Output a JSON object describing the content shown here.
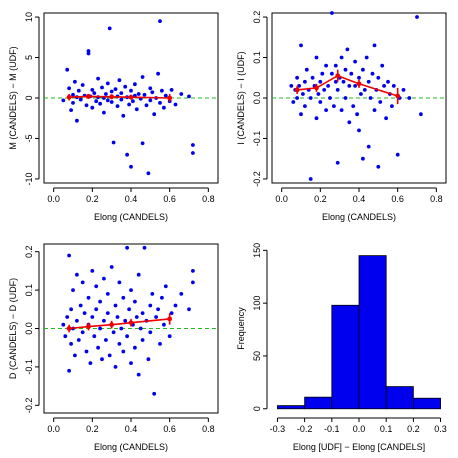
{
  "chart_data": [
    {
      "type": "scatter",
      "xlabel": "Elong (CANDELS)",
      "ylabel": "M (CANDELS) − M (UDF)",
      "xlim": [
        -0.05,
        0.85
      ],
      "ylim": [
        -10.5,
        10.5
      ],
      "xticks": [
        "0.0",
        "0.2",
        "0.4",
        "0.6",
        "0.8"
      ],
      "xtick_values": [
        0.0,
        0.2,
        0.4,
        0.6,
        0.8
      ],
      "yticks": [
        "-10",
        "-5",
        "0",
        "5",
        "10"
      ],
      "ytick_values": [
        -10,
        -5,
        0,
        5,
        10
      ],
      "reference_line": 0,
      "points": [
        [
          0.05,
          -0.3
        ],
        [
          0.07,
          3.5
        ],
        [
          0.08,
          1.2
        ],
        [
          0.09,
          -1.5
        ],
        [
          0.1,
          0.4
        ],
        [
          0.1,
          -0.6
        ],
        [
          0.11,
          2.0
        ],
        [
          0.12,
          0.1
        ],
        [
          0.12,
          -2.8
        ],
        [
          0.13,
          0.9
        ],
        [
          0.14,
          -0.2
        ],
        [
          0.15,
          1.6
        ],
        [
          0.16,
          0.3
        ],
        [
          0.17,
          -0.9
        ],
        [
          0.18,
          5.8
        ],
        [
          0.18,
          5.5
        ],
        [
          0.19,
          0.2
        ],
        [
          0.2,
          -1.2
        ],
        [
          0.2,
          1.0
        ],
        [
          0.21,
          0.6
        ],
        [
          0.22,
          -0.4
        ],
        [
          0.23,
          2.4
        ],
        [
          0.23,
          0.1
        ],
        [
          0.24,
          -0.7
        ],
        [
          0.25,
          1.3
        ],
        [
          0.26,
          0.0
        ],
        [
          0.26,
          -1.8
        ],
        [
          0.27,
          0.5
        ],
        [
          0.28,
          -0.3
        ],
        [
          0.28,
          1.8
        ],
        [
          0.29,
          8.6
        ],
        [
          0.3,
          0.8
        ],
        [
          0.3,
          -0.5
        ],
        [
          0.31,
          -5.5
        ],
        [
          0.32,
          1.1
        ],
        [
          0.33,
          0.2
        ],
        [
          0.33,
          -1.0
        ],
        [
          0.34,
          2.2
        ],
        [
          0.35,
          -0.2
        ],
        [
          0.35,
          0.6
        ],
        [
          0.36,
          -2.2
        ],
        [
          0.37,
          1.4
        ],
        [
          0.38,
          0.1
        ],
        [
          0.38,
          -7.0
        ],
        [
          0.39,
          -0.8
        ],
        [
          0.4,
          -8.5
        ],
        [
          0.4,
          0.9
        ],
        [
          0.41,
          -0.4
        ],
        [
          0.42,
          1.7
        ],
        [
          0.42,
          0.3
        ],
        [
          0.43,
          -1.4
        ],
        [
          0.44,
          0.5
        ],
        [
          0.45,
          -0.1
        ],
        [
          0.46,
          2.6
        ],
        [
          0.46,
          -5.6
        ],
        [
          0.47,
          0.4
        ],
        [
          0.48,
          -0.9
        ],
        [
          0.49,
          -9.3
        ],
        [
          0.5,
          1.2
        ],
        [
          0.5,
          -0.3
        ],
        [
          0.51,
          0.7
        ],
        [
          0.52,
          -2.0
        ],
        [
          0.53,
          0.0
        ],
        [
          0.54,
          3.0
        ],
        [
          0.55,
          9.5
        ],
        [
          0.55,
          -0.6
        ],
        [
          0.56,
          0.9
        ],
        [
          0.57,
          -1.2
        ],
        [
          0.58,
          0.3
        ],
        [
          0.6,
          -0.4
        ],
        [
          0.61,
          1.0
        ],
        [
          0.63,
          -0.8
        ],
        [
          0.66,
          0.5
        ],
        [
          0.7,
          0.2
        ],
        [
          0.72,
          -5.8
        ],
        [
          0.72,
          -6.8
        ]
      ],
      "trend": [
        [
          0.08,
          0.1
        ],
        [
          0.18,
          0.2
        ],
        [
          0.3,
          0.15
        ],
        [
          0.4,
          0.1
        ],
        [
          0.6,
          0.0
        ]
      ],
      "trend_err": [
        0.4,
        0.3,
        0.3,
        0.3,
        0.5
      ]
    },
    {
      "type": "scatter",
      "xlabel": "Elong (CANDELS)",
      "ylabel": "I (CANDELS) − I (UDF)",
      "xlim": [
        -0.05,
        0.85
      ],
      "ylim": [
        -0.21,
        0.21
      ],
      "xticks": [
        "0.0",
        "0.2",
        "0.4",
        "0.6",
        "0.8"
      ],
      "xtick_values": [
        0.0,
        0.2,
        0.4,
        0.6,
        0.8
      ],
      "yticks": [
        "-0.2",
        "-0.1",
        "0.0",
        "0.1",
        "0.2"
      ],
      "ytick_values": [
        -0.2,
        -0.1,
        0.0,
        0.1,
        0.2
      ],
      "reference_line": 0,
      "points": [
        [
          0.05,
          0.03
        ],
        [
          0.06,
          -0.01
        ],
        [
          0.07,
          0.02
        ],
        [
          0.08,
          0.05
        ],
        [
          0.08,
          0.0
        ],
        [
          0.09,
          0.03
        ],
        [
          0.1,
          -0.04
        ],
        [
          0.1,
          0.13
        ],
        [
          0.11,
          0.01
        ],
        [
          0.12,
          0.04
        ],
        [
          0.12,
          -0.02
        ],
        [
          0.13,
          0.07
        ],
        [
          0.14,
          0.02
        ],
        [
          0.15,
          0.0
        ],
        [
          0.15,
          -0.2
        ],
        [
          0.16,
          0.05
        ],
        [
          0.17,
          0.03
        ],
        [
          0.18,
          -0.05
        ],
        [
          0.18,
          0.1
        ],
        [
          0.19,
          0.01
        ],
        [
          0.2,
          0.04
        ],
        [
          0.2,
          -0.01
        ],
        [
          0.21,
          0.06
        ],
        [
          0.22,
          0.02
        ],
        [
          0.23,
          -0.03
        ],
        [
          0.23,
          0.08
        ],
        [
          0.24,
          0.03
        ],
        [
          0.25,
          0.0
        ],
        [
          0.26,
          0.21
        ],
        [
          0.26,
          0.06
        ],
        [
          0.27,
          -0.02
        ],
        [
          0.28,
          0.04
        ],
        [
          0.28,
          0.08
        ],
        [
          0.29,
          0.02
        ],
        [
          0.29,
          -0.16
        ],
        [
          0.3,
          0.05
        ],
        [
          0.31,
          0.1
        ],
        [
          0.31,
          -0.03
        ],
        [
          0.32,
          0.04
        ],
        [
          0.33,
          0.07
        ],
        [
          0.33,
          0.0
        ],
        [
          0.34,
          0.12
        ],
        [
          0.35,
          -0.06
        ],
        [
          0.35,
          0.03
        ],
        [
          0.36,
          0.06
        ],
        [
          0.37,
          -0.02
        ],
        [
          0.38,
          0.09
        ],
        [
          0.38,
          0.03
        ],
        [
          0.39,
          -0.04
        ],
        [
          0.4,
          0.05
        ],
        [
          0.4,
          -0.08
        ],
        [
          0.41,
          0.01
        ],
        [
          0.42,
          0.07
        ],
        [
          0.42,
          -0.15
        ],
        [
          0.43,
          0.02
        ],
        [
          0.44,
          0.1
        ],
        [
          0.45,
          0.04
        ],
        [
          0.45,
          -0.12
        ],
        [
          0.46,
          0.0
        ],
        [
          0.47,
          0.06
        ],
        [
          0.48,
          -0.03
        ],
        [
          0.48,
          0.13
        ],
        [
          0.49,
          0.02
        ],
        [
          0.5,
          -0.17
        ],
        [
          0.5,
          0.05
        ],
        [
          0.51,
          -0.01
        ],
        [
          0.52,
          0.08
        ],
        [
          0.53,
          0.03
        ],
        [
          0.54,
          -0.05
        ],
        [
          0.55,
          0.04
        ],
        [
          0.56,
          0.01
        ],
        [
          0.57,
          -0.02
        ],
        [
          0.58,
          0.03
        ],
        [
          0.6,
          -0.14
        ],
        [
          0.61,
          0.0
        ],
        [
          0.63,
          0.02
        ],
        [
          0.66,
          0.0
        ],
        [
          0.7,
          0.2
        ],
        [
          0.72,
          -0.04
        ]
      ],
      "trend": [
        [
          0.08,
          0.02
        ],
        [
          0.18,
          0.025
        ],
        [
          0.29,
          0.055
        ],
        [
          0.4,
          0.035
        ],
        [
          0.6,
          0.005
        ]
      ],
      "trend_err": [
        0.01,
        0.01,
        0.015,
        0.01,
        0.02
      ]
    },
    {
      "type": "scatter",
      "xlabel": "Elong (CANDELS)",
      "ylabel": "D (CANDELS) − D (UDF)",
      "xlim": [
        -0.05,
        0.85
      ],
      "ylim": [
        -0.22,
        0.22
      ],
      "xticks": [
        "0.0",
        "0.2",
        "0.4",
        "0.6",
        "0.8"
      ],
      "xtick_values": [
        0.0,
        0.2,
        0.4,
        0.6,
        0.8
      ],
      "yticks": [
        "-0.2",
        "-0.1",
        "0.0",
        "0.1",
        "0.2"
      ],
      "ytick_values": [
        -0.2,
        -0.1,
        0.0,
        0.1,
        0.2
      ],
      "reference_line": 0,
      "points": [
        [
          0.05,
          0.01
        ],
        [
          0.06,
          -0.02
        ],
        [
          0.07,
          0.03
        ],
        [
          0.08,
          0.19
        ],
        [
          0.08,
          -0.11
        ],
        [
          0.09,
          0.05
        ],
        [
          0.09,
          -0.04
        ],
        [
          0.1,
          0.0
        ],
        [
          0.1,
          0.1
        ],
        [
          0.11,
          -0.07
        ],
        [
          0.12,
          0.02
        ],
        [
          0.12,
          0.14
        ],
        [
          0.13,
          -0.03
        ],
        [
          0.14,
          0.06
        ],
        [
          0.15,
          -0.01
        ],
        [
          0.15,
          0.12
        ],
        [
          0.16,
          0.04
        ],
        [
          0.17,
          -0.06
        ],
        [
          0.18,
          0.08
        ],
        [
          0.18,
          0.01
        ],
        [
          0.19,
          -0.09
        ],
        [
          0.2,
          0.15
        ],
        [
          0.2,
          0.03
        ],
        [
          0.21,
          -0.02
        ],
        [
          0.22,
          0.05
        ],
        [
          0.22,
          0.11
        ],
        [
          0.23,
          -0.05
        ],
        [
          0.24,
          0.0
        ],
        [
          0.24,
          0.07
        ],
        [
          0.25,
          -0.08
        ],
        [
          0.26,
          0.13
        ],
        [
          0.26,
          0.02
        ],
        [
          0.27,
          -0.03
        ],
        [
          0.28,
          0.09
        ],
        [
          0.28,
          0.04
        ],
        [
          0.29,
          -0.07
        ],
        [
          0.3,
          0.01
        ],
        [
          0.3,
          0.16
        ],
        [
          0.31,
          -0.01
        ],
        [
          0.32,
          0.06
        ],
        [
          0.32,
          -0.1
        ],
        [
          0.33,
          0.03
        ],
        [
          0.34,
          0.12
        ],
        [
          0.34,
          -0.04
        ],
        [
          0.35,
          0.0
        ],
        [
          0.36,
          0.08
        ],
        [
          0.36,
          -0.06
        ],
        [
          0.37,
          0.02
        ],
        [
          0.38,
          0.21
        ],
        [
          0.38,
          -0.02
        ],
        [
          0.39,
          0.05
        ],
        [
          0.4,
          -0.09
        ],
        [
          0.4,
          0.1
        ],
        [
          0.41,
          0.01
        ],
        [
          0.42,
          -0.05
        ],
        [
          0.42,
          0.07
        ],
        [
          0.43,
          0.03
        ],
        [
          0.44,
          -0.12
        ],
        [
          0.44,
          0.14
        ],
        [
          0.45,
          0.0
        ],
        [
          0.46,
          0.04
        ],
        [
          0.46,
          -0.03
        ],
        [
          0.47,
          0.21
        ],
        [
          0.48,
          0.02
        ],
        [
          0.49,
          -0.08
        ],
        [
          0.5,
          0.06
        ],
        [
          0.5,
          -0.01
        ],
        [
          0.51,
          0.09
        ],
        [
          0.52,
          -0.17
        ],
        [
          0.53,
          0.03
        ],
        [
          0.54,
          0.05
        ],
        [
          0.55,
          -0.04
        ],
        [
          0.56,
          0.08
        ],
        [
          0.57,
          0.01
        ],
        [
          0.58,
          0.11
        ],
        [
          0.6,
          -0.02
        ],
        [
          0.61,
          0.04
        ],
        [
          0.63,
          0.06
        ],
        [
          0.66,
          0.09
        ],
        [
          0.7,
          0.05
        ],
        [
          0.72,
          0.15
        ],
        [
          0.72,
          0.12
        ]
      ],
      "trend": [
        [
          0.08,
          0.0
        ],
        [
          0.18,
          0.005
        ],
        [
          0.3,
          0.01
        ],
        [
          0.4,
          0.015
        ],
        [
          0.6,
          0.025
        ]
      ],
      "trend_err": [
        0.01,
        0.01,
        0.01,
        0.01,
        0.015
      ]
    },
    {
      "type": "bar",
      "xlabel": "Elong [UDF] − Elong [CANDELS]",
      "ylabel": "Frequency",
      "xlim": [
        -0.32,
        0.32
      ],
      "ylim": [
        -4,
        156
      ],
      "xticks": [
        "-0.3",
        "-0.2",
        "-0.1",
        "0.0",
        "0.1",
        "0.2",
        "0.3"
      ],
      "xtick_values": [
        -0.3,
        -0.2,
        -0.1,
        0.0,
        0.1,
        0.2,
        0.3
      ],
      "yticks": [
        "0",
        "50",
        "100",
        "150"
      ],
      "ytick_values": [
        0,
        50,
        100,
        150
      ],
      "bin_edges": [
        -0.3,
        -0.2,
        -0.1,
        0.0,
        0.1,
        0.2,
        0.3
      ],
      "values": [
        3,
        11,
        98,
        145,
        21,
        10
      ]
    }
  ]
}
